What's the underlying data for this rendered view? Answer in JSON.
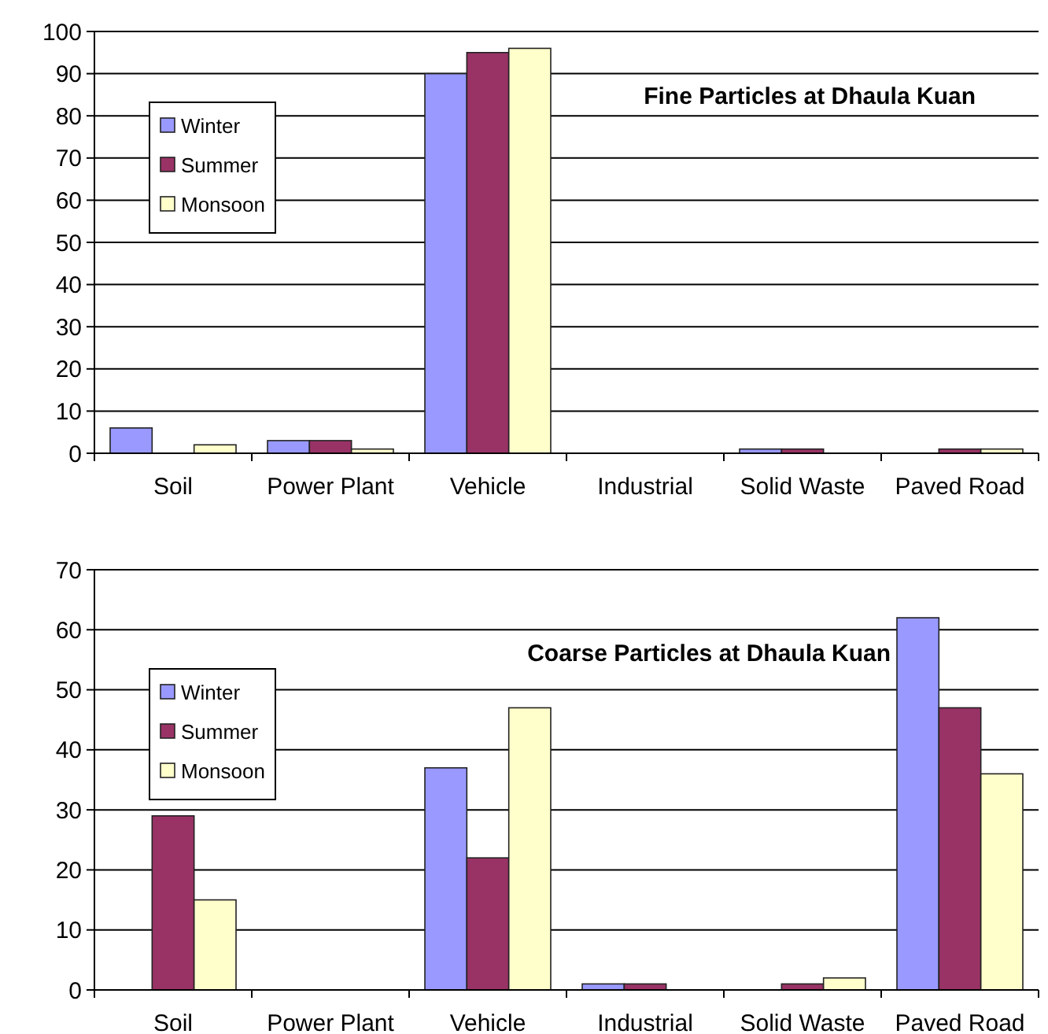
{
  "chart_data": [
    {
      "type": "bar",
      "title": "Fine Particles at Dhaula Kuan",
      "categories": [
        "Soil",
        "Power Plant",
        "Vehicle",
        "Industrial",
        "Solid Waste",
        "Paved Road"
      ],
      "series": [
        {
          "name": "Winter",
          "color": "#9999ff",
          "values": [
            6,
            3,
            90,
            0,
            1,
            0
          ]
        },
        {
          "name": "Summer",
          "color": "#993366",
          "values": [
            0,
            3,
            95,
            0,
            1,
            1
          ]
        },
        {
          "name": "Monsoon",
          "color": "#ffffcc",
          "values": [
            2,
            1,
            96,
            0,
            0,
            1
          ]
        }
      ],
      "ylim": [
        0,
        100
      ],
      "yticks": [
        0,
        10,
        20,
        30,
        40,
        50,
        60,
        70,
        80,
        90,
        100
      ],
      "grid": "y",
      "legend": "top left"
    },
    {
      "type": "bar",
      "title": "Coarse Particles at Dhaula Kuan",
      "categories": [
        "Soil",
        "Power Plant",
        "Vehicle",
        "Industrial",
        "Solid Waste",
        "Paved Road"
      ],
      "series": [
        {
          "name": "Winter",
          "color": "#9999ff",
          "values": [
            0,
            0,
            37,
            1,
            0,
            62
          ]
        },
        {
          "name": "Summer",
          "color": "#993366",
          "values": [
            29,
            0,
            22,
            1,
            1,
            47
          ]
        },
        {
          "name": "Monsoon",
          "color": "#ffffcc",
          "values": [
            15,
            0,
            47,
            0,
            2,
            36
          ]
        }
      ],
      "ylim": [
        0,
        70
      ],
      "yticks": [
        0,
        10,
        20,
        30,
        40,
        50,
        60,
        70
      ],
      "grid": "y",
      "legend": "left"
    }
  ]
}
